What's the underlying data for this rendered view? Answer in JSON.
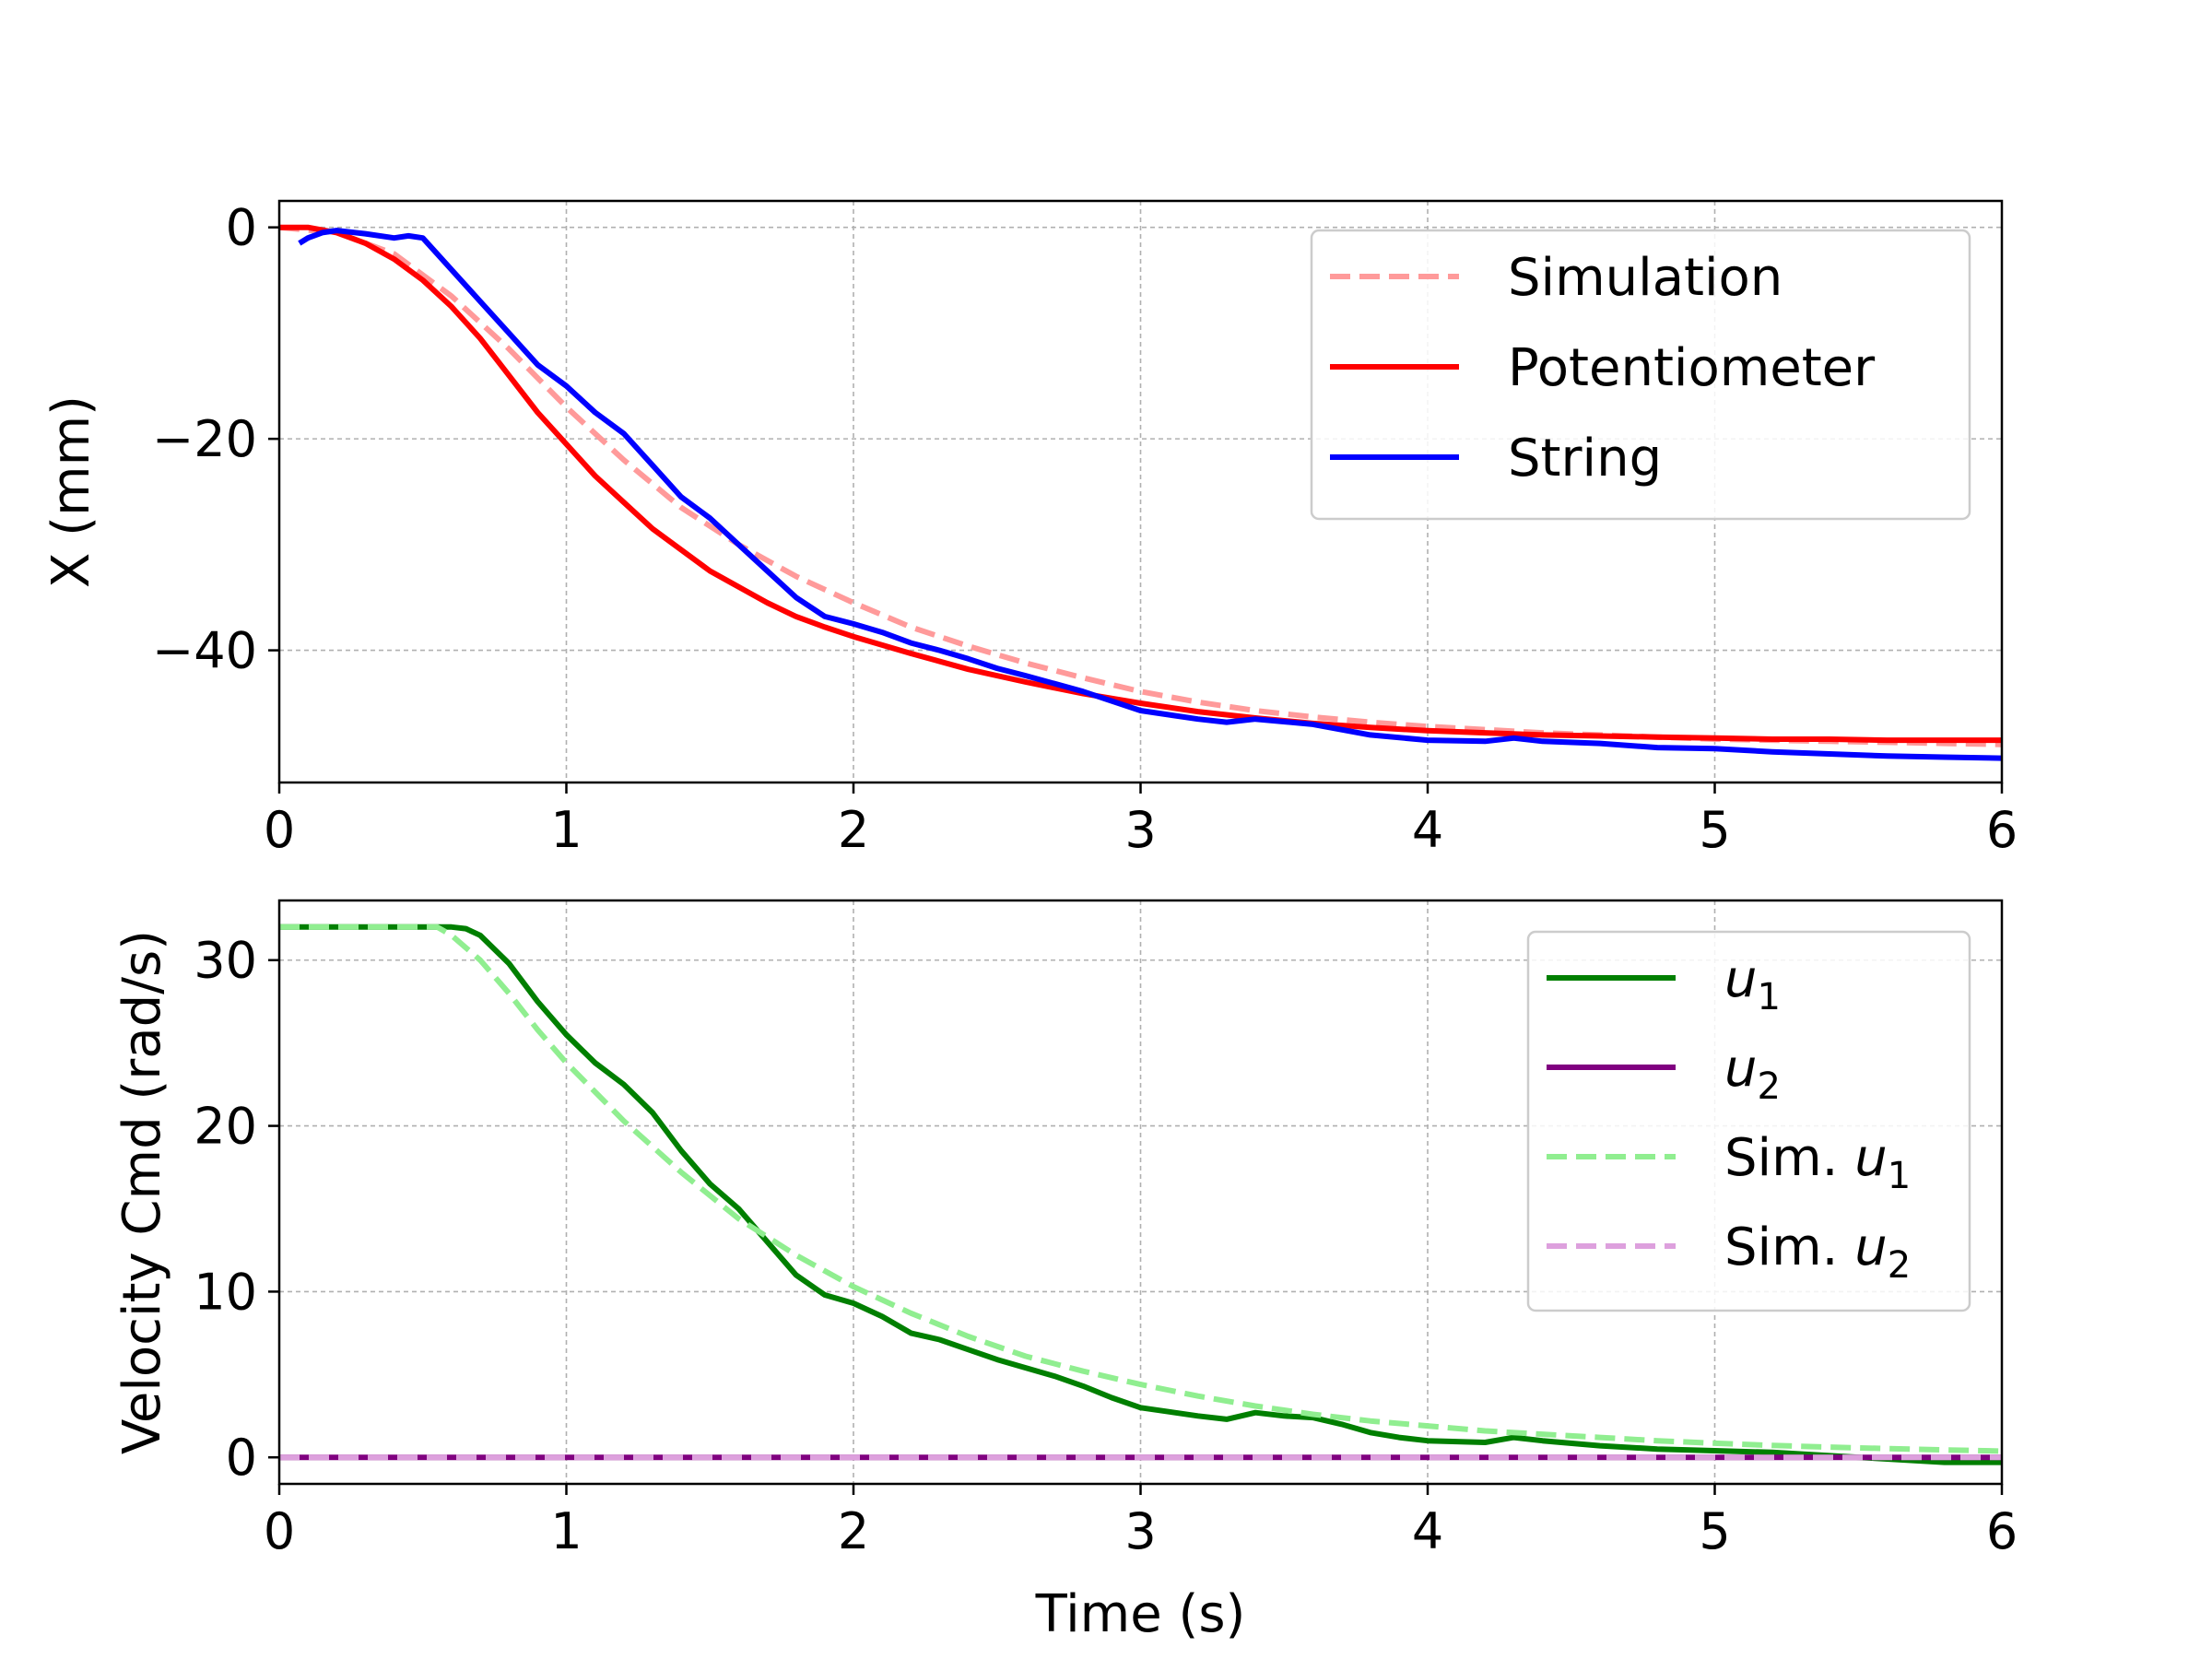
{
  "chart_data": [
    {
      "type": "line",
      "xlabel": "",
      "ylabel": "X (mm)",
      "xlim": [
        0,
        6
      ],
      "ylim": [
        -52.5,
        2.5
      ],
      "xticks": [
        0,
        1,
        2,
        3,
        4,
        5,
        6
      ],
      "yticks": [
        0,
        -20,
        -40
      ],
      "xtick_labels": [
        "0",
        "1",
        "2",
        "3",
        "4",
        "5",
        "6"
      ],
      "ytick_labels": [
        "0",
        "−20",
        "−40"
      ],
      "grid": true,
      "legend": {
        "placement": "top-right"
      },
      "series": [
        {
          "name": "Simulation",
          "color": "#ff9a9a",
          "dash": "dashed",
          "x": [
            0,
            0.2,
            0.4,
            0.6,
            0.8,
            1.0,
            1.2,
            1.4,
            1.6,
            1.8,
            2.0,
            2.2,
            2.4,
            2.6,
            2.8,
            3.0,
            3.2,
            3.4,
            3.6,
            3.8,
            4.0,
            4.2,
            4.4,
            4.6,
            4.8,
            5.0,
            5.2,
            5.4,
            5.6,
            5.8,
            6.0
          ],
          "y": [
            0,
            -0.5,
            -2.5,
            -6.5,
            -11.5,
            -17.0,
            -22.0,
            -26.5,
            -30.0,
            -33.0,
            -35.5,
            -37.8,
            -39.6,
            -41.2,
            -42.6,
            -43.9,
            -44.9,
            -45.7,
            -46.3,
            -46.8,
            -47.2,
            -47.5,
            -47.8,
            -48.0,
            -48.2,
            -48.4,
            -48.5,
            -48.6,
            -48.7,
            -48.8,
            -48.9
          ]
        },
        {
          "name": "Potentiometer",
          "color": "#ff0000",
          "dash": "solid",
          "x": [
            0,
            0.1,
            0.2,
            0.3,
            0.4,
            0.5,
            0.6,
            0.7,
            0.8,
            0.9,
            1.0,
            1.1,
            1.2,
            1.3,
            1.4,
            1.5,
            1.6,
            1.7,
            1.8,
            1.9,
            2.0,
            2.2,
            2.4,
            2.6,
            2.8,
            3.0,
            3.2,
            3.4,
            3.6,
            3.8,
            4.0,
            4.2,
            4.4,
            4.6,
            4.8,
            5.0,
            5.2,
            5.4,
            5.6,
            5.8,
            6.0
          ],
          "y": [
            0,
            0,
            -0.5,
            -1.5,
            -3.0,
            -5.0,
            -7.5,
            -10.5,
            -14.0,
            -17.5,
            -20.5,
            -23.5,
            -26.0,
            -28.5,
            -30.5,
            -32.5,
            -34.0,
            -35.5,
            -36.8,
            -37.8,
            -38.7,
            -40.3,
            -41.8,
            -43.0,
            -44.1,
            -45.0,
            -45.8,
            -46.4,
            -46.9,
            -47.3,
            -47.6,
            -47.8,
            -48.0,
            -48.1,
            -48.2,
            -48.3,
            -48.4,
            -48.4,
            -48.5,
            -48.5,
            -48.5
          ]
        },
        {
          "name": "String",
          "color": "#0000ff",
          "dash": "solid",
          "x": [
            0.07,
            0.1,
            0.15,
            0.2,
            0.3,
            0.4,
            0.45,
            0.5,
            0.55,
            0.6,
            0.7,
            0.8,
            0.9,
            1.0,
            1.1,
            1.2,
            1.3,
            1.4,
            1.5,
            1.6,
            1.7,
            1.8,
            1.9,
            2.0,
            2.1,
            2.2,
            2.3,
            2.4,
            2.5,
            2.6,
            2.8,
            3.0,
            3.2,
            3.3,
            3.4,
            3.6,
            3.8,
            4.0,
            4.2,
            4.3,
            4.4,
            4.6,
            4.8,
            5.0,
            5.2,
            5.4,
            5.6,
            5.8,
            6.0
          ],
          "y": [
            -1.5,
            -1.0,
            -0.5,
            -0.3,
            -0.6,
            -1.0,
            -0.8,
            -1.0,
            -2.5,
            -4.0,
            -7.0,
            -10.0,
            -13.0,
            -15.0,
            -17.5,
            -19.5,
            -22.5,
            -25.5,
            -27.5,
            -30.0,
            -32.5,
            -35.0,
            -36.8,
            -37.5,
            -38.3,
            -39.3,
            -40.0,
            -40.8,
            -41.7,
            -42.4,
            -43.9,
            -45.7,
            -46.5,
            -46.8,
            -46.5,
            -47.0,
            -48.0,
            -48.5,
            -48.6,
            -48.3,
            -48.6,
            -48.8,
            -49.2,
            -49.3,
            -49.6,
            -49.8,
            -50.0,
            -50.1,
            -50.2
          ]
        }
      ]
    },
    {
      "type": "line",
      "xlabel": "Time (s)",
      "ylabel": "Velocity Cmd (rad/s)",
      "xlim": [
        0,
        6
      ],
      "ylim": [
        -1.6,
        33.6
      ],
      "xticks": [
        0,
        1,
        2,
        3,
        4,
        5,
        6
      ],
      "yticks": [
        0,
        10,
        20,
        30
      ],
      "xtick_labels": [
        "0",
        "1",
        "2",
        "3",
        "4",
        "5",
        "6"
      ],
      "ytick_labels": [
        "0",
        "10",
        "20",
        "30"
      ],
      "grid": true,
      "legend": {
        "placement": "top-right"
      },
      "series": [
        {
          "name": "u1",
          "color": "#007f00",
          "dash": "solid",
          "x": [
            0,
            0.3,
            0.6,
            0.65,
            0.7,
            0.8,
            0.9,
            1.0,
            1.1,
            1.2,
            1.3,
            1.4,
            1.5,
            1.6,
            1.7,
            1.8,
            1.9,
            2.0,
            2.1,
            2.2,
            2.3,
            2.4,
            2.5,
            2.6,
            2.7,
            2.8,
            2.9,
            3.0,
            3.2,
            3.3,
            3.4,
            3.5,
            3.6,
            3.7,
            3.8,
            3.9,
            4.0,
            4.2,
            4.3,
            4.4,
            4.6,
            4.8,
            5.0,
            5.2,
            5.4,
            5.6,
            5.8,
            6.0
          ],
          "y": [
            32,
            32,
            32,
            31.9,
            31.5,
            29.8,
            27.5,
            25.5,
            23.8,
            22.5,
            20.8,
            18.5,
            16.5,
            15.0,
            13.0,
            11.0,
            9.8,
            9.3,
            8.5,
            7.5,
            7.1,
            6.5,
            5.9,
            5.4,
            4.9,
            4.3,
            3.6,
            3.0,
            2.5,
            2.3,
            2.7,
            2.5,
            2.4,
            2.0,
            1.5,
            1.2,
            1.0,
            0.9,
            1.2,
            1.0,
            0.7,
            0.5,
            0.4,
            0.3,
            0.1,
            -0.1,
            -0.3,
            -0.3
          ]
        },
        {
          "name": "u2",
          "color": "#800080",
          "dash": "solid",
          "x": [
            0,
            6
          ],
          "y": [
            0,
            0
          ]
        },
        {
          "name": "Sim. u1",
          "color": "#90ee90",
          "dash": "dashed",
          "x": [
            0,
            0.3,
            0.55,
            0.6,
            0.7,
            0.8,
            0.9,
            1.0,
            1.2,
            1.4,
            1.6,
            1.8,
            2.0,
            2.2,
            2.4,
            2.6,
            2.8,
            3.0,
            3.2,
            3.4,
            3.6,
            3.8,
            4.0,
            4.2,
            4.4,
            4.6,
            4.8,
            5.0,
            5.2,
            5.4,
            5.6,
            5.8,
            6.0
          ],
          "y": [
            32,
            32,
            32,
            31.5,
            30.0,
            28.0,
            25.8,
            23.8,
            20.3,
            17.2,
            14.4,
            12.2,
            10.3,
            8.7,
            7.3,
            6.1,
            5.2,
            4.4,
            3.7,
            3.1,
            2.6,
            2.2,
            1.9,
            1.6,
            1.4,
            1.2,
            1.0,
            0.85,
            0.72,
            0.62,
            0.53,
            0.45,
            0.38
          ]
        },
        {
          "name": "Sim. u2",
          "color": "#dda0dd",
          "dash": "dashed",
          "x": [
            0,
            6
          ],
          "y": [
            0,
            0
          ]
        }
      ]
    }
  ],
  "legends": [
    [
      {
        "label": "Simulation",
        "color": "#ff9a9a",
        "dash": "dashed"
      },
      {
        "label": "Potentiometer",
        "color": "#ff0000",
        "dash": "solid"
      },
      {
        "label": "String",
        "color": "#0000ff",
        "dash": "solid"
      }
    ],
    [
      {
        "prefix": "",
        "var": "u",
        "sub": "1",
        "color": "#007f00",
        "dash": "solid"
      },
      {
        "prefix": "",
        "var": "u",
        "sub": "2",
        "color": "#800080",
        "dash": "solid"
      },
      {
        "prefix": "Sim. ",
        "var": "u",
        "sub": "1",
        "color": "#90ee90",
        "dash": "dashed"
      },
      {
        "prefix": "Sim. ",
        "var": "u",
        "sub": "2",
        "color": "#dda0dd",
        "dash": "dashed"
      }
    ]
  ]
}
